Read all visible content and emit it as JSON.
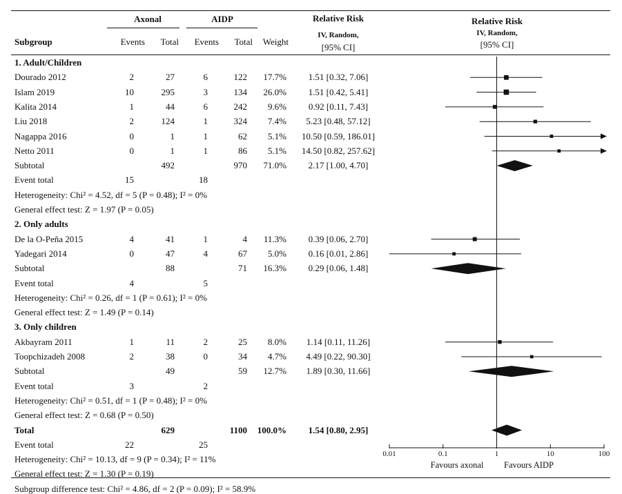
{
  "header": {
    "group1": "Axonal",
    "group2": "AIDP",
    "subgroup": "Subgroup",
    "events1": "Events",
    "total1": "Total",
    "events2": "Events",
    "total2": "Total",
    "weight": "Weight",
    "rr_title": "Relative Risk",
    "rr_method": "IV, Random,",
    "rr_ci": "[95% CI]",
    "plot_title": "Relative Risk",
    "plot_method": "IV, Random,",
    "plot_ci": "[95% CI]"
  },
  "rows": [
    {
      "kind": "section",
      "label": "1. Adult/Children"
    },
    {
      "kind": "study",
      "label": "Dourado 2012",
      "e1": "2",
      "t1": "27",
      "e2": "6",
      "t2": "122",
      "weight": "17.7%",
      "rr": "1.51 [0.32, 7.06]"
    },
    {
      "kind": "study",
      "label": "Islam 2019",
      "e1": "10",
      "t1": "295",
      "e2": "3",
      "t2": "134",
      "weight": "26.0%",
      "rr": "1.51 [0.42, 5.41]"
    },
    {
      "kind": "study",
      "label": "Kalita 2014",
      "e1": "1",
      "t1": "44",
      "e2": "6",
      "t2": "242",
      "weight": "9.6%",
      "rr": "0.92 [0.11, 7.43]"
    },
    {
      "kind": "study",
      "label": "Liu 2018",
      "e1": "2",
      "t1": "124",
      "e2": "1",
      "t2": "324",
      "weight": "7.4%",
      "rr": "5.23 [0.48, 57.12]"
    },
    {
      "kind": "study",
      "label": "Nagappa 2016",
      "e1": "0",
      "t1": "1",
      "e2": "1",
      "t2": "62",
      "weight": "5.1%",
      "rr": "10.50 [0.59, 186.01]"
    },
    {
      "kind": "study",
      "label": "Netto 2011",
      "e1": "0",
      "t1": "1",
      "e2": "1",
      "t2": "86",
      "weight": "5.1%",
      "rr": "14.50 [0.82, 257.62]"
    },
    {
      "kind": "subtotal",
      "label": "Subtotal",
      "t1": "492",
      "t2": "970",
      "weight": "71.0%",
      "rr": "2.17 [1.00, 4.70]"
    },
    {
      "kind": "evtotal",
      "label": "Event total",
      "e1": "15",
      "e2": "18"
    },
    {
      "kind": "note",
      "label": "Heterogeneity: Chi² = 4.52, df = 5 (P = 0.48); I² = 0%"
    },
    {
      "kind": "note",
      "label": "General effect test: Z = 1.97 (P = 0.05)"
    },
    {
      "kind": "section",
      "label": "2. Only adults"
    },
    {
      "kind": "study",
      "label": "De la O-Peña 2015",
      "e1": "4",
      "t1": "41",
      "e2": "1",
      "t2": "4",
      "weight": "11.3%",
      "rr": "0.39 [0.06, 2.70]"
    },
    {
      "kind": "study",
      "label": "Yadegari 2014",
      "e1": "0",
      "t1": "47",
      "e2": "4",
      "t2": "67",
      "weight": "5.0%",
      "rr": "0.16 [0.01, 2.86]"
    },
    {
      "kind": "subtotal",
      "label": "Subtotal",
      "t1": "88",
      "t2": "71",
      "weight": "16.3%",
      "rr": "0.29 [0.06, 1.48]"
    },
    {
      "kind": "evtotal",
      "label": "Event total",
      "e1": "4",
      "e2": "5"
    },
    {
      "kind": "note",
      "label": "Heterogeneity: Chi² = 0.26, df = 1 (P = 0.61); I² = 0%"
    },
    {
      "kind": "note",
      "label": "General effect test: Z = 1.49 (P = 0.14)"
    },
    {
      "kind": "section",
      "label": "3. Only children"
    },
    {
      "kind": "study",
      "label": "Akbayram 2011",
      "e1": "1",
      "t1": "11",
      "e2": "2",
      "t2": "25",
      "weight": "8.0%",
      "rr": "1.14 [0.11, 11.26]"
    },
    {
      "kind": "study",
      "label": "Toopchizadeh 2008",
      "e1": "2",
      "t1": "38",
      "e2": "0",
      "t2": "34",
      "weight": "4.7%",
      "rr": "4.49 [0.22, 90.30]"
    },
    {
      "kind": "subtotal",
      "label": "Subtotal",
      "t1": "49",
      "t2": "59",
      "weight": "12.7%",
      "rr": "1.89 [0.30, 11.66]"
    },
    {
      "kind": "evtotal",
      "label": "Event total",
      "e1": "3",
      "e2": "2"
    },
    {
      "kind": "note",
      "label": "Heterogeneity: Chi² = 0.51, df = 1 (P = 0.48); I² = 0%"
    },
    {
      "kind": "note",
      "label": "General effect test:  Z = 0.68 (P = 0.50)"
    },
    {
      "kind": "total",
      "label": "Total",
      "t1": "629",
      "t2": "1100",
      "weight": "100.0%",
      "rr": "1.54 [0.80, 2.95]"
    },
    {
      "kind": "evtotal",
      "label": "Event total",
      "e1": "22",
      "e2": "25"
    },
    {
      "kind": "note",
      "label": "Heterogeneity: Chi² = 10.13, df = 9 (P = 0.34); I² = 11%"
    },
    {
      "kind": "note",
      "label": "General effect test: Z = 1.30 (P = 0.19)"
    },
    {
      "kind": "note",
      "label": "Subgroup difference test:  Chi² = 4.86, df = 2 (P = 0.09); I² = 58.9%"
    }
  ],
  "chart_data": {
    "type": "forest",
    "x_scale": "log",
    "xlim": [
      0.01,
      100
    ],
    "ticks": [
      {
        "value": 0.01,
        "label": "0.01"
      },
      {
        "value": 0.1,
        "label": "0.1"
      },
      {
        "value": 1,
        "label": "1"
      },
      {
        "value": 10,
        "label": "10"
      },
      {
        "value": 100,
        "label": "100"
      }
    ],
    "reference_line": 1,
    "left_label": "Favours axonal",
    "right_label": "Favours AIDP",
    "studies": [
      {
        "name": "Dourado 2012",
        "rr": 1.51,
        "lo": 0.32,
        "hi": 7.06,
        "weight": 17.7
      },
      {
        "name": "Islam 2019",
        "rr": 1.51,
        "lo": 0.42,
        "hi": 5.41,
        "weight": 26.0
      },
      {
        "name": "Kalita 2014",
        "rr": 0.92,
        "lo": 0.11,
        "hi": 7.43,
        "weight": 9.6
      },
      {
        "name": "Liu 2018",
        "rr": 5.23,
        "lo": 0.48,
        "hi": 57.12,
        "weight": 7.4
      },
      {
        "name": "Nagappa 2016",
        "rr": 10.5,
        "lo": 0.59,
        "hi": 186.01,
        "weight": 5.1
      },
      {
        "name": "Netto 2011",
        "rr": 14.5,
        "lo": 0.82,
        "hi": 257.62,
        "weight": 5.1
      },
      {
        "name": "Subtotal 1",
        "rr": 2.17,
        "lo": 1.0,
        "hi": 4.7,
        "weight": 71.0,
        "diamond": true
      },
      {
        "name": "De la O-Peña 2015",
        "rr": 0.39,
        "lo": 0.06,
        "hi": 2.7,
        "weight": 11.3
      },
      {
        "name": "Yadegari 2014",
        "rr": 0.16,
        "lo": 0.01,
        "hi": 2.86,
        "weight": 5.0
      },
      {
        "name": "Subtotal 2",
        "rr": 0.29,
        "lo": 0.06,
        "hi": 1.48,
        "weight": 16.3,
        "diamond": true
      },
      {
        "name": "Akbayram 2011",
        "rr": 1.14,
        "lo": 0.11,
        "hi": 11.26,
        "weight": 8.0
      },
      {
        "name": "Toopchizadeh 2008",
        "rr": 4.49,
        "lo": 0.22,
        "hi": 90.3,
        "weight": 4.7
      },
      {
        "name": "Subtotal 3",
        "rr": 1.89,
        "lo": 0.3,
        "hi": 11.66,
        "weight": 12.7,
        "diamond": true
      },
      {
        "name": "Total",
        "rr": 1.54,
        "lo": 0.8,
        "hi": 2.95,
        "weight": 100.0,
        "diamond": true
      }
    ]
  }
}
